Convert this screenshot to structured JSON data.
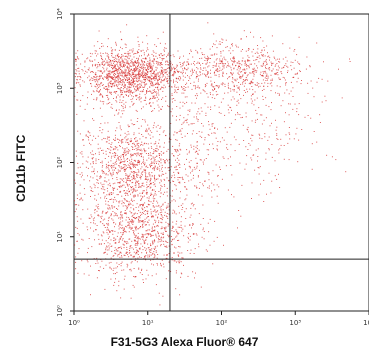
{
  "chart_data": {
    "type": "scatter",
    "title": "",
    "xlabel": "F31-5G3 Alexa Fluor® 647",
    "ylabel": "CD11b FITC",
    "x_scale": "log",
    "y_scale": "log",
    "xlim": [
      1,
      10000
    ],
    "ylim": [
      1,
      10000
    ],
    "x_ticks": [
      "10⁰",
      "10¹",
      "10²",
      "10³",
      "10⁴"
    ],
    "y_ticks": [
      "10⁰",
      "10¹",
      "10²",
      "10³",
      "10⁴"
    ],
    "x_tick_values": [
      1,
      10,
      100,
      1000,
      10000
    ],
    "y_tick_values": [
      1,
      10,
      100,
      1000,
      10000
    ],
    "quadrant_gate": {
      "x": 20,
      "y": 5
    },
    "point_color": "#d42a2a",
    "grid": false,
    "populations": [
      {
        "x_center": 6,
        "y_center": 1500,
        "count": 1400
      },
      {
        "x_center": 6,
        "y_center": 80,
        "count": 1100
      },
      {
        "x_center": 8,
        "y_center": 10,
        "count": 900
      },
      {
        "x_center": 150,
        "y_center": 1800,
        "count": 650
      },
      {
        "x_center": 300,
        "y_center": 300,
        "count": 250
      },
      {
        "x_center": 40,
        "y_center": 200,
        "count": 200
      }
    ]
  }
}
